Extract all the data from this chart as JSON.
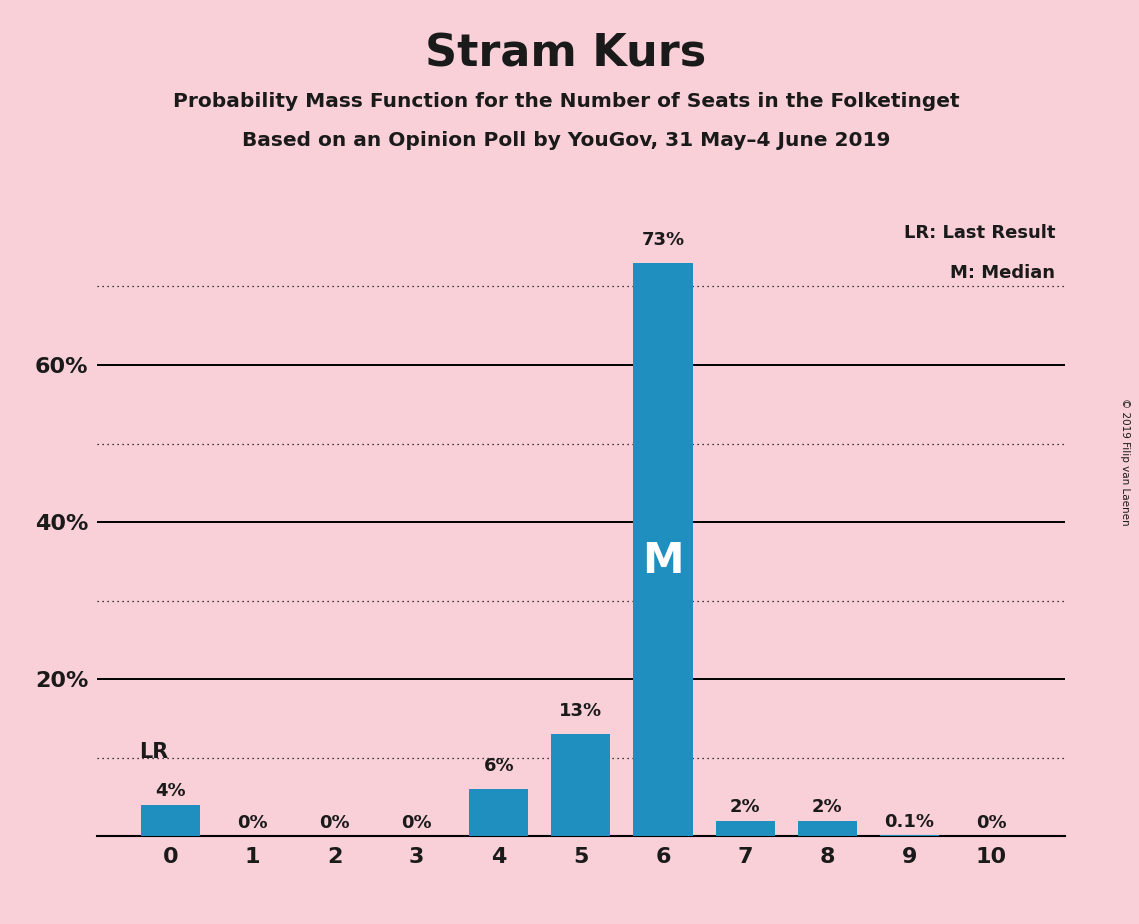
{
  "title": "Stram Kurs",
  "subtitle1": "Probability Mass Function for the Number of Seats in the Folketinget",
  "subtitle2": "Based on an Opinion Poll by YouGov, 31 May–4 June 2019",
  "copyright": "© 2019 Filip van Laenen",
  "categories": [
    0,
    1,
    2,
    3,
    4,
    5,
    6,
    7,
    8,
    9,
    10
  ],
  "values": [
    4,
    0,
    0,
    0,
    6,
    13,
    73,
    2,
    2,
    0.1,
    0
  ],
  "bar_color": "#1f8fc0",
  "background_color": "#f9d0d8",
  "text_color": "#1a1a1a",
  "yticks": [
    20,
    40,
    60
  ],
  "ylim": [
    0,
    80
  ],
  "bar_labels": [
    "4%",
    "0%",
    "0%",
    "0%",
    "6%",
    "13%",
    "73%",
    "2%",
    "2%",
    "0.1%",
    "0%"
  ],
  "median_bar_idx": 6,
  "lr_bar_idx": 0,
  "legend_lr": "LR: Last Result",
  "legend_m": "M: Median",
  "solid_gridlines": [
    20,
    40,
    60
  ],
  "dotted_gridlines": [
    10,
    30,
    50,
    70
  ]
}
